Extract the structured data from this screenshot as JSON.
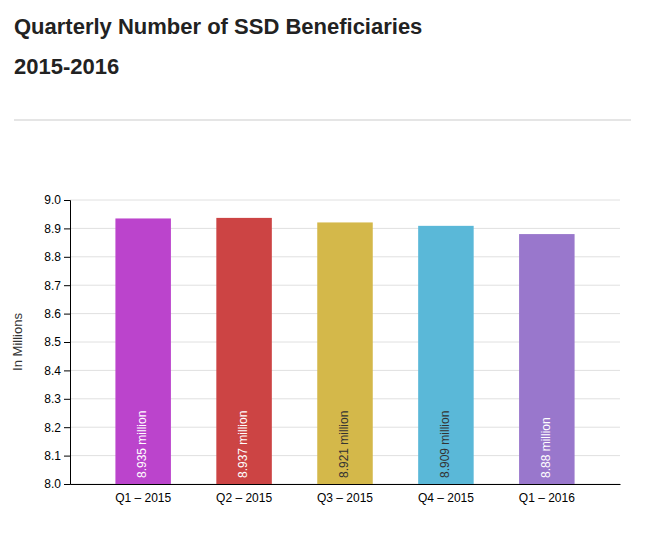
{
  "chart_data": {
    "type": "bar",
    "title": "Quarterly Number of SSD Beneficiaries",
    "subtitle": "2015-2016",
    "y_label": "In Millions",
    "categories": [
      "Q1 – 2015",
      "Q2 – 2015",
      "Q3 – 2015",
      "Q4 – 2015",
      "Q1 – 2016"
    ],
    "values": [
      8.935,
      8.937,
      8.921,
      8.909,
      8.88
    ],
    "value_labels": [
      "8.935 million",
      "8.937 million",
      "8.921 million",
      "8.909 million",
      "8.88 million"
    ],
    "data_labels": true,
    "colors": [
      "#bb44cc",
      "#cc4444",
      "#d4b84a",
      "#5ab8d8",
      "#9977cc"
    ],
    "ylim": [
      8.0,
      9.0
    ],
    "yticks": [
      {
        "value": 8.0,
        "label": "8.0"
      },
      8.1,
      8.2,
      8.3,
      8.4,
      8.5,
      8.6,
      8.7,
      8.8,
      8.9,
      {
        "value": 9.0,
        "label": "9.0"
      }
    ],
    "grid": true
  }
}
